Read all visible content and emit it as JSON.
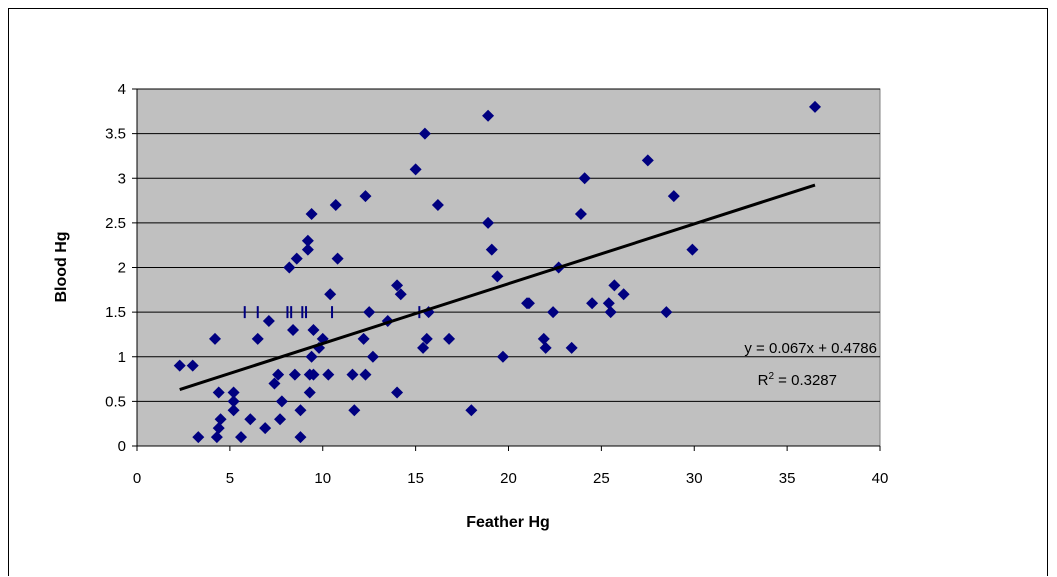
{
  "chart_data": {
    "type": "scatter",
    "title": "",
    "xlabel": "Feather Hg",
    "ylabel": "Blood Hg",
    "xlim": [
      0,
      40
    ],
    "ylim": [
      0,
      4
    ],
    "x_ticks": [
      "0",
      "5",
      "10",
      "15",
      "20",
      "25",
      "30",
      "35",
      "40"
    ],
    "y_ticks": [
      "0",
      "0.5",
      "1",
      "1.5",
      "2",
      "2.5",
      "3",
      "3.5",
      "4"
    ],
    "grid": true,
    "legend": "none",
    "colors": {
      "plot_area": "#c0c0c0",
      "marker": "#000080",
      "trendline": "#000000",
      "grid": "#000000"
    },
    "series": [
      {
        "marker": "diamond",
        "points": [
          [
            2.3,
            0.9
          ],
          [
            3.0,
            0.9
          ],
          [
            3.3,
            0.1
          ],
          [
            4.2,
            1.2
          ],
          [
            4.3,
            0.1
          ],
          [
            4.4,
            0.6
          ],
          [
            4.4,
            0.2
          ],
          [
            4.5,
            0.3
          ],
          [
            5.2,
            0.6
          ],
          [
            5.2,
            0.5
          ],
          [
            5.2,
            0.4
          ],
          [
            5.6,
            0.1
          ],
          [
            6.1,
            0.3
          ],
          [
            6.5,
            1.2
          ],
          [
            6.9,
            0.2
          ],
          [
            7.1,
            1.4
          ],
          [
            7.4,
            0.7
          ],
          [
            7.6,
            0.8
          ],
          [
            7.7,
            0.3
          ],
          [
            7.8,
            0.5
          ],
          [
            8.2,
            2.0
          ],
          [
            8.4,
            1.3
          ],
          [
            8.5,
            0.8
          ],
          [
            8.6,
            2.1
          ],
          [
            8.8,
            0.4
          ],
          [
            8.8,
            0.1
          ],
          [
            9.2,
            2.3
          ],
          [
            9.2,
            2.2
          ],
          [
            9.3,
            0.6
          ],
          [
            9.3,
            0.8
          ],
          [
            9.4,
            1.0
          ],
          [
            9.4,
            2.6
          ],
          [
            9.5,
            1.3
          ],
          [
            9.5,
            0.8
          ],
          [
            9.8,
            1.1
          ],
          [
            10.0,
            1.2
          ],
          [
            10.3,
            0.8
          ],
          [
            10.4,
            1.7
          ],
          [
            10.7,
            2.7
          ],
          [
            10.8,
            2.1
          ],
          [
            11.6,
            0.8
          ],
          [
            11.7,
            0.4
          ],
          [
            12.2,
            1.2
          ],
          [
            12.3,
            2.8
          ],
          [
            12.3,
            0.8
          ],
          [
            12.5,
            1.5
          ],
          [
            12.7,
            1.0
          ],
          [
            13.5,
            1.4
          ],
          [
            14.0,
            0.6
          ],
          [
            14.0,
            1.8
          ],
          [
            14.2,
            1.7
          ],
          [
            15.0,
            3.1
          ],
          [
            15.4,
            1.1
          ],
          [
            15.5,
            3.5
          ],
          [
            15.6,
            1.2
          ],
          [
            15.7,
            1.5
          ],
          [
            16.2,
            2.7
          ],
          [
            16.8,
            1.2
          ],
          [
            18.0,
            0.4
          ],
          [
            18.9,
            3.7
          ],
          [
            18.9,
            2.5
          ],
          [
            19.1,
            2.2
          ],
          [
            19.4,
            1.9
          ],
          [
            19.7,
            1.0
          ],
          [
            21.0,
            1.6
          ],
          [
            21.1,
            1.6
          ],
          [
            21.9,
            1.2
          ],
          [
            22.0,
            1.1
          ],
          [
            22.4,
            1.5
          ],
          [
            22.7,
            2.0
          ],
          [
            23.4,
            1.1
          ],
          [
            23.9,
            2.6
          ],
          [
            24.1,
            3.0
          ],
          [
            24.5,
            1.6
          ],
          [
            25.4,
            1.6
          ],
          [
            25.5,
            1.5
          ],
          [
            25.7,
            1.8
          ],
          [
            26.2,
            1.7
          ],
          [
            27.5,
            3.2
          ],
          [
            28.5,
            1.5
          ],
          [
            28.9,
            2.8
          ],
          [
            29.9,
            2.2
          ],
          [
            36.5,
            3.8
          ]
        ]
      }
    ],
    "trendline": {
      "slope": 0.067,
      "intercept": 0.4786,
      "x_range": [
        2.3,
        36.5
      ]
    },
    "error_marks": [
      5.8,
      6.5,
      8.1,
      8.3,
      8.9,
      9.1,
      10.5,
      15.2
    ],
    "annotations": {
      "equation": "y = 0.067x + 0.4786",
      "r2_prefix": "R",
      "r2_sup": "2",
      "r2_suffix": " = 0.3287"
    }
  }
}
